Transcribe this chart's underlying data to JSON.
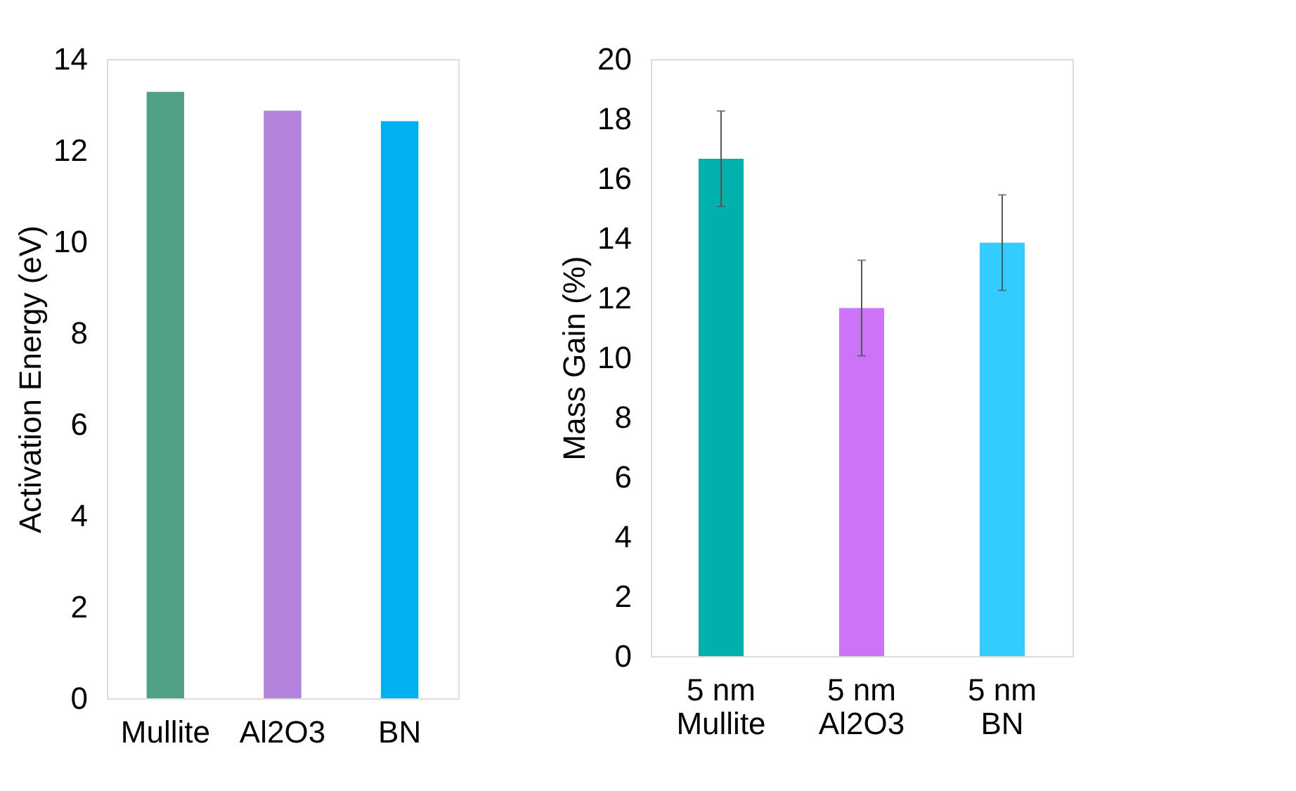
{
  "chart_data": [
    {
      "type": "bar",
      "ylabel": "Activation Energy (eV)",
      "categories": [
        "Mullite",
        "Al2O3",
        "BN"
      ],
      "values": [
        13.28,
        12.87,
        12.64
      ],
      "colors": [
        "#4fa084",
        "#b383db",
        "#00b0f0"
      ],
      "ylim": [
        0,
        14
      ],
      "yticks": [
        0,
        2,
        4,
        6,
        8,
        10,
        12,
        14
      ],
      "grid": false
    },
    {
      "type": "bar",
      "ylabel": "Mass Gain (%)",
      "categories": [
        "5 nm\nMullite",
        "5 nm\nAl2O3",
        "5 nm\nBN"
      ],
      "values": [
        16.66,
        11.66,
        13.85
      ],
      "errors": [
        1.6,
        1.6,
        1.6
      ],
      "colors": [
        "#00b0aa",
        "#cc73f8",
        "#33ccff"
      ],
      "ylim": [
        0,
        20
      ],
      "yticks": [
        0,
        2,
        4,
        6,
        8,
        10,
        12,
        14,
        16,
        18,
        20
      ],
      "grid": false
    }
  ]
}
